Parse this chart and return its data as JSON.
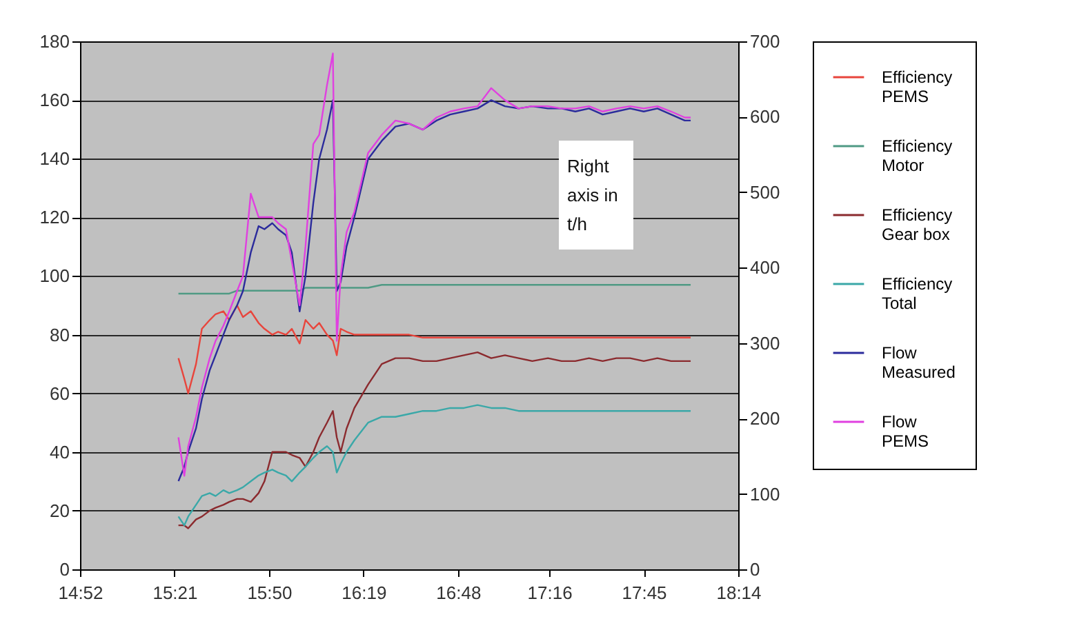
{
  "chart_data": {
    "type": "line",
    "x": [
      15.37,
      15.4,
      15.42,
      15.46,
      15.49,
      15.53,
      15.56,
      15.6,
      15.63,
      15.67,
      15.7,
      15.74,
      15.78,
      15.81,
      15.85,
      15.88,
      15.92,
      15.95,
      15.99,
      16.02,
      16.06,
      16.09,
      16.13,
      16.16,
      16.18,
      16.2,
      16.23,
      16.27,
      16.34,
      16.41,
      16.48,
      16.55,
      16.62,
      16.69,
      16.76,
      16.83,
      16.9,
      16.97,
      17.04,
      17.11,
      17.18,
      17.26,
      17.33,
      17.4,
      17.47,
      17.54,
      17.61,
      17.68,
      17.75,
      17.82,
      17.89,
      17.96,
      17.99
    ],
    "series": [
      {
        "name": "Efficiency PEMS",
        "color": "#e8453c",
        "values": [
          72,
          65,
          60,
          70,
          82,
          85,
          87,
          88,
          85,
          90,
          86,
          88,
          84,
          82,
          80,
          81,
          80,
          82,
          77,
          85,
          82,
          84,
          80,
          78,
          73,
          82,
          81,
          80,
          80,
          80,
          80,
          80,
          79,
          79,
          79,
          79,
          79,
          79,
          79,
          79,
          79,
          79,
          79,
          79,
          79,
          79,
          79,
          79,
          79,
          79,
          79,
          79,
          79
        ]
      },
      {
        "name": "Efficiency Motor",
        "color": "#4f9a84",
        "values": [
          94,
          94,
          94,
          94,
          94,
          94,
          94,
          94,
          94,
          95,
          95,
          95,
          95,
          95,
          95,
          95,
          95,
          95,
          95,
          96,
          96,
          96,
          96,
          96,
          96,
          96,
          96,
          96,
          96,
          97,
          97,
          97,
          97,
          97,
          97,
          97,
          97,
          97,
          97,
          97,
          97,
          97,
          97,
          97,
          97,
          97,
          97,
          97,
          97,
          97,
          97,
          97,
          97
        ]
      },
      {
        "name": "Efficiency Gear box",
        "color": "#8b2a2e",
        "values": [
          15,
          15,
          14,
          17,
          18,
          20,
          21,
          22,
          23,
          24,
          24,
          23,
          26,
          30,
          40,
          40,
          40,
          39,
          38,
          35,
          40,
          45,
          50,
          54,
          45,
          40,
          48,
          55,
          63,
          70,
          72,
          72,
          71,
          71,
          72,
          73,
          74,
          72,
          73,
          72,
          71,
          72,
          71,
          71,
          72,
          71,
          72,
          72,
          71,
          72,
          71,
          71,
          71
        ]
      },
      {
        "name": "Efficiency Total",
        "color": "#3aa8a8",
        "values": [
          18,
          15,
          18,
          22,
          25,
          26,
          25,
          27,
          26,
          27,
          28,
          30,
          32,
          33,
          34,
          33,
          32,
          30,
          33,
          35,
          38,
          40,
          42,
          40,
          33,
          36,
          40,
          44,
          50,
          52,
          52,
          53,
          54,
          54,
          55,
          55,
          56,
          55,
          55,
          54,
          54,
          54,
          54,
          54,
          54,
          54,
          54,
          54,
          54,
          54,
          54,
          54,
          54
        ]
      },
      {
        "name": "Flow Measured",
        "color": "#2b2b9c",
        "axis": "y2",
        "values": [
          117,
          136,
          156,
          187,
          226,
          264,
          284,
          311,
          331,
          350,
          369,
          420,
          455,
          451,
          459,
          451,
          443,
          420,
          342,
          389,
          486,
          544,
          583,
          622,
          369,
          381,
          428,
          467,
          544,
          568,
          587,
          591,
          583,
          595,
          603,
          607,
          611,
          622,
          614,
          611,
          614,
          611,
          611,
          607,
          611,
          603,
          607,
          611,
          607,
          611,
          603,
          595,
          595
        ]
      },
      {
        "name": "Flow PEMS",
        "color": "#e040e0",
        "axis": "y2",
        "values": [
          175,
          124,
          163,
          202,
          241,
          280,
          303,
          323,
          342,
          369,
          389,
          498,
          467,
          467,
          467,
          459,
          451,
          408,
          350,
          428,
          564,
          576,
          642,
          684,
          303,
          389,
          447,
          474,
          552,
          576,
          595,
          591,
          583,
          599,
          607,
          611,
          614,
          638,
          622,
          611,
          614,
          614,
          611,
          611,
          614,
          607,
          611,
          614,
          611,
          614,
          607,
          599,
          599
        ]
      }
    ],
    "xlim": [
      14.8667,
      18.2333
    ],
    "xticks": [
      {
        "value": 14.8667,
        "label": "14:52"
      },
      {
        "value": 15.35,
        "label": "15:21"
      },
      {
        "value": 15.8333,
        "label": "15:50"
      },
      {
        "value": 16.3167,
        "label": "16:19"
      },
      {
        "value": 16.8,
        "label": "16:48"
      },
      {
        "value": 17.2667,
        "label": "17:16"
      },
      {
        "value": 17.75,
        "label": "17:45"
      },
      {
        "value": 18.2333,
        "label": "18:14"
      }
    ],
    "ylim": [
      0,
      180
    ],
    "yticks": [
      0,
      20,
      40,
      60,
      80,
      100,
      120,
      140,
      160,
      180
    ],
    "y2lim": [
      0,
      700
    ],
    "y2ticks": [
      0,
      100,
      200,
      300,
      400,
      500,
      600,
      700
    ],
    "annotations": [
      "Right axis in t/h"
    ],
    "grid": "y",
    "legend": "right"
  }
}
